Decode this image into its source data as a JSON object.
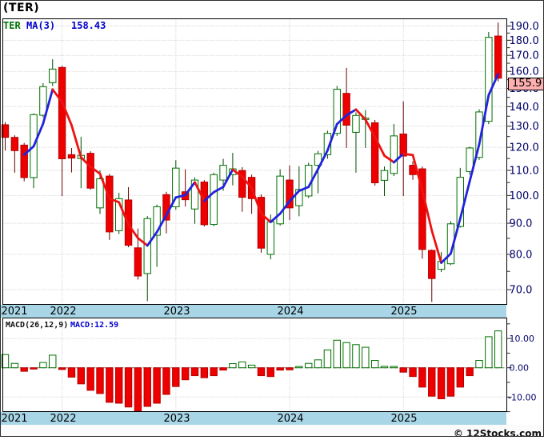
{
  "title": "(TER)",
  "footer": {
    "text": "© 12Stocks.com"
  },
  "x_axis": {
    "years": [
      "2021",
      "2022",
      "2023",
      "2024",
      "2025"
    ]
  },
  "price_panel": {
    "legend": {
      "symbol": "TER",
      "ma_label": "MA(3)",
      "ma_value": "158.43"
    },
    "last_price_label": "155.9"
  },
  "macd_panel": {
    "legend_params": "MACD(26,12,9)",
    "legend_value": "MACD:12.59"
  },
  "colors": {
    "up": "#007000",
    "up_wick": "#004d00",
    "down": "#ee0000",
    "down_border": "#b30000",
    "down_wick": "#6b0000",
    "ma_up": "#2222dd",
    "ma_down": "#ee1212",
    "grid": "#c3c3c3",
    "zero_line": "#777777",
    "axis_text": "#00006b",
    "band_bg": "#a9d6e7",
    "price_box_bg": "#ffb0b0",
    "legend_blue": "#0000cc",
    "legend_green": "#007000"
  },
  "chart_data": [
    {
      "type": "candlestick",
      "title": "TER monthly candles",
      "interval": "monthly",
      "scale": "log",
      "ylim": [
        66,
        195
      ],
      "y_axis": {
        "ticks": [
          190,
          180,
          170,
          160,
          150,
          140,
          130,
          120,
          110,
          100,
          90,
          80,
          70
        ],
        "minor_step": 5
      },
      "x_year_ticks": [
        {
          "label": "2021",
          "month_index": 0
        },
        {
          "label": "2022",
          "month_index": 6
        },
        {
          "label": "2023",
          "month_index": 18
        },
        {
          "label": "2024",
          "month_index": 30
        },
        {
          "label": "2025",
          "month_index": 42
        }
      ],
      "last_price": 155.9,
      "overlays": [
        {
          "name": "MA(3)",
          "period": 3,
          "last_value": 158.43,
          "style": "slope-colored-blue-up-red-down"
        }
      ],
      "ohlc": [
        [
          "2021-07",
          130.7,
          132.0,
          118.5,
          124.6
        ],
        [
          "2021-08",
          124.6,
          125.6,
          109.0,
          118.5
        ],
        [
          "2021-09",
          121.0,
          122.0,
          105.5,
          107.0
        ],
        [
          "2021-10",
          107.0,
          136.5,
          102.8,
          135.8
        ],
        [
          "2021-11",
          135.5,
          153.0,
          134.4,
          151.0
        ],
        [
          "2021-12",
          153.3,
          167.5,
          151.4,
          161.4
        ],
        [
          "2022-01",
          162.4,
          163.4,
          99.8,
          114.9
        ],
        [
          "2022-02",
          116.7,
          119.7,
          109.1,
          115.2
        ],
        [
          "2022-03",
          115.0,
          124.9,
          102.8,
          116.4
        ],
        [
          "2022-04",
          117.3,
          118.2,
          102.2,
          102.8
        ],
        [
          "2022-05",
          95.4,
          110.0,
          93.2,
          106.5
        ],
        [
          "2022-06",
          107.6,
          108.5,
          84.5,
          87.1
        ],
        [
          "2022-07",
          87.5,
          101.0,
          86.4,
          98.8
        ],
        [
          "2022-08",
          98.3,
          103.2,
          82.2,
          82.8
        ],
        [
          "2022-09",
          82.0,
          88.2,
          72.7,
          73.7
        ],
        [
          "2022-10",
          74.4,
          92.5,
          67.0,
          91.6
        ],
        [
          "2022-11",
          86.0,
          96.6,
          76.3,
          95.8
        ],
        [
          "2022-12",
          100.3,
          101.4,
          86.6,
          91.1
        ],
        [
          "2023-01",
          95.8,
          114.3,
          94.7,
          110.9
        ],
        [
          "2023-02",
          101.4,
          110.4,
          95.9,
          98.4
        ],
        [
          "2023-03",
          95.0,
          107.1,
          89.8,
          106.0
        ],
        [
          "2023-04",
          105.2,
          106.0,
          88.9,
          89.5
        ],
        [
          "2023-05",
          89.6,
          109.0,
          89.0,
          108.2
        ],
        [
          "2023-06",
          106.0,
          114.9,
          101.8,
          112.1
        ],
        [
          "2023-07",
          108.2,
          117.5,
          103.9,
          110.6
        ],
        [
          "2023-08",
          109.9,
          111.3,
          94.0,
          99.3
        ],
        [
          "2023-09",
          107.1,
          108.2,
          93.3,
          98.8
        ],
        [
          "2023-10",
          99.3,
          100.4,
          80.5,
          81.9
        ],
        [
          "2023-11",
          80.0,
          93.0,
          78.5,
          90.5
        ],
        [
          "2023-12",
          89.8,
          110.4,
          89.2,
          107.6
        ],
        [
          "2024-01",
          106.0,
          112.1,
          91.1,
          95.4
        ],
        [
          "2024-02",
          96.2,
          111.7,
          92.4,
          102.3
        ],
        [
          "2024-03",
          99.8,
          113.2,
          99.0,
          112.1
        ],
        [
          "2024-04",
          112.1,
          118.4,
          100.8,
          117.1
        ],
        [
          "2024-05",
          116.7,
          127.8,
          114.9,
          126.5
        ],
        [
          "2024-06",
          126.5,
          151.4,
          125.3,
          149.5
        ],
        [
          "2024-07",
          147.2,
          162.1,
          119.7,
          130.5
        ],
        [
          "2024-08",
          127.0,
          137.0,
          109.0,
          135.4
        ],
        [
          "2024-09",
          133.5,
          138.2,
          119.7,
          134.0
        ],
        [
          "2024-10",
          131.7,
          133.1,
          103.8,
          104.9
        ],
        [
          "2024-11",
          105.9,
          111.6,
          99.8,
          109.9
        ],
        [
          "2024-12",
          108.7,
          131.1,
          107.6,
          125.3
        ],
        [
          "2025-01",
          126.2,
          142.8,
          99.8,
          116.1
        ],
        [
          "2025-02",
          112.1,
          113.8,
          106.1,
          108.2
        ],
        [
          "2025-03",
          110.6,
          111.6,
          78.7,
          81.5
        ],
        [
          "2025-04",
          81.2,
          81.5,
          66.8,
          73.0
        ],
        [
          "2025-05",
          75.6,
          80.7,
          74.8,
          77.9
        ],
        [
          "2025-06",
          77.2,
          90.7,
          76.8,
          89.8
        ],
        [
          "2025-07",
          88.9,
          111.0,
          88.5,
          107.1
        ],
        [
          "2025-08",
          109.5,
          120.3,
          108.2,
          119.7
        ],
        [
          "2025-09",
          115.5,
          138.6,
          114.4,
          137.2
        ],
        [
          "2025-10",
          132.4,
          185.7,
          131.0,
          182.0
        ],
        [
          "2025-11",
          182.9,
          192.5,
          154.0,
          155.9
        ]
      ]
    },
    {
      "type": "bar",
      "title": "MACD(26,12,9) histogram",
      "last_value": 12.59,
      "ylim": [
        -16,
        14
      ],
      "y_axis": {
        "ticks": [
          {
            "value": 10,
            "label": "10.00"
          },
          {
            "value": 0,
            "label": "0.00"
          },
          {
            "value": -10,
            "label": "-10.00"
          }
        ],
        "minor_step": 5
      },
      "values": [
        4.5,
        1.5,
        -1.2,
        -0.1,
        1.8,
        4.3,
        -0.6,
        -3.2,
        -5.5,
        -7.7,
        -8.8,
        -11.8,
        -12.1,
        -13.4,
        -15.2,
        -13.2,
        -12.1,
        -9.1,
        -6.4,
        -4.1,
        -2.7,
        -3.4,
        -2.7,
        -0.8,
        1.4,
        2.0,
        0.9,
        -2.7,
        -3.0,
        -0.8,
        -0.7,
        0.2,
        1.5,
        2.7,
        6.1,
        9.4,
        8.6,
        7.9,
        7.0,
        2.5,
        0.5,
        0.3,
        -1.5,
        -3.0,
        -6.6,
        -9.7,
        -10.6,
        -9.7,
        -6.6,
        -2.7,
        2.5,
        10.6,
        12.59
      ]
    }
  ]
}
